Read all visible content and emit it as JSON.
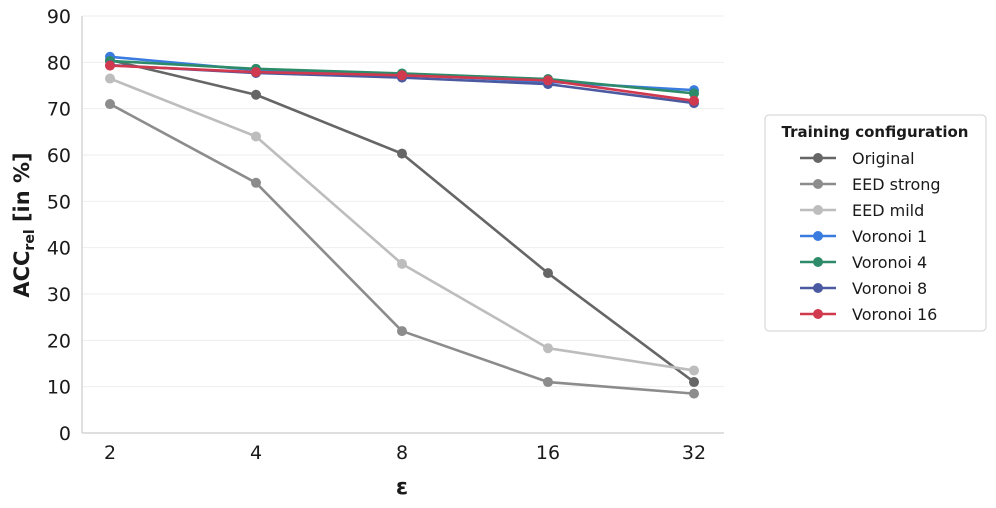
{
  "chart_data": {
    "type": "line",
    "x": [
      "2",
      "4",
      "8",
      "16",
      "32"
    ],
    "xlabel": "ε",
    "ylabel_main": "ACC",
    "ylabel_sub": "rel",
    "ylabel_suffix": " [in %]",
    "ylim": [
      0,
      90
    ],
    "yticks": [
      0,
      10,
      20,
      30,
      40,
      50,
      60,
      70,
      80,
      90
    ],
    "grid": "horizontal",
    "legend": {
      "title": "Training configuration",
      "placement": "right"
    },
    "series": [
      {
        "name": "Original",
        "color": "#666666",
        "values": [
          80.5,
          73.0,
          60.3,
          34.5,
          11.0
        ]
      },
      {
        "name": "EED strong",
        "color": "#8c8c8c",
        "values": [
          71.0,
          54.0,
          22.0,
          11.0,
          8.5
        ]
      },
      {
        "name": "EED mild",
        "color": "#bdbdbd",
        "values": [
          76.5,
          64.0,
          36.5,
          18.3,
          13.5
        ]
      },
      {
        "name": "Voronoi 1",
        "color": "#3a7be0",
        "values": [
          81.2,
          78.3,
          77.3,
          75.8,
          74.0
        ]
      },
      {
        "name": "Voronoi 4",
        "color": "#2e8b6a",
        "values": [
          80.3,
          78.6,
          77.6,
          76.4,
          73.3
        ]
      },
      {
        "name": "Voronoi 8",
        "color": "#4b5aa0",
        "values": [
          79.4,
          77.7,
          76.7,
          75.3,
          71.2
        ]
      },
      {
        "name": "Voronoi 16",
        "color": "#d1394f",
        "values": [
          79.3,
          77.9,
          77.2,
          76.1,
          71.7
        ]
      }
    ]
  }
}
